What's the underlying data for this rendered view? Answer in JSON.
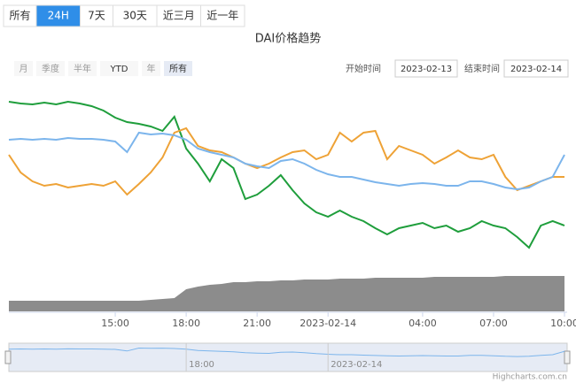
{
  "chart_data": {
    "type": "line",
    "tabs": [
      "所有",
      "24H",
      "7天",
      "30天",
      "近三月",
      "近一年"
    ],
    "title": "DAI价格趋势",
    "zoom_buttons": [
      "月",
      "季度",
      "半年",
      "YTD",
      "年",
      "所有"
    ],
    "start_label": "开始时间",
    "start": "2023-02-13",
    "end_label": "结束时间",
    "end": "2023-02-14",
    "categories": [
      null,
      null,
      null,
      null,
      null,
      null,
      null,
      null,
      null,
      "15:00",
      null,
      null,
      null,
      null,
      null,
      "18:00",
      null,
      null,
      null,
      null,
      null,
      "21:00",
      null,
      null,
      null,
      null,
      null,
      "2023-02-14",
      null,
      null,
      null,
      null,
      null,
      null,
      null,
      "04:00",
      null,
      null,
      null,
      null,
      null,
      "07:00",
      null,
      null,
      null,
      null,
      null,
      "10:00"
    ],
    "ylim": [
      0,
      200
    ],
    "series": [
      {
        "color": "#1f9e3c",
        "values": [
          185,
          183,
          182,
          184,
          182,
          185,
          183,
          180,
          175,
          167,
          162,
          160,
          157,
          152,
          168,
          132,
          115,
          95,
          120,
          110,
          75,
          80,
          90,
          102,
          85,
          70,
          60,
          55,
          62,
          55,
          50,
          42,
          35,
          42,
          45,
          48,
          42,
          45,
          38,
          42,
          50,
          45,
          42,
          32,
          20,
          45,
          50,
          45
        ]
      },
      {
        "color": "#eea236",
        "values": [
          125,
          105,
          95,
          90,
          92,
          88,
          90,
          92,
          90,
          95,
          80,
          92,
          105,
          122,
          150,
          155,
          135,
          130,
          128,
          122,
          115,
          110,
          115,
          122,
          128,
          130,
          120,
          125,
          150,
          140,
          150,
          152,
          120,
          135,
          130,
          125,
          115,
          122,
          130,
          122,
          120,
          125,
          100,
          85,
          90,
          95,
          100,
          100
        ]
      },
      {
        "color": "#7cb5ec",
        "values": [
          142,
          143,
          142,
          143,
          142,
          144,
          143,
          143,
          142,
          140,
          128,
          150,
          148,
          149,
          147,
          142,
          132,
          128,
          125,
          122,
          115,
          112,
          110,
          118,
          120,
          115,
          108,
          103,
          100,
          100,
          97,
          94,
          92,
          90,
          92,
          93,
          92,
          90,
          90,
          95,
          95,
          92,
          88,
          86,
          88,
          95,
          100,
          125
        ]
      }
    ],
    "area": {
      "color": "#8c8c8c",
      "ylim": [
        0,
        50
      ],
      "values": [
        12,
        12,
        12,
        12,
        12,
        12,
        12,
        12,
        12,
        12,
        12,
        12,
        13,
        14,
        15,
        25,
        28,
        30,
        31,
        33,
        33,
        34,
        34,
        35,
        35,
        36,
        36,
        36,
        37,
        37,
        37,
        38,
        38,
        38,
        38,
        38,
        39,
        39,
        39,
        39,
        39,
        39,
        40,
        40,
        40,
        40,
        40,
        40
      ]
    },
    "navigator_labels": [
      {
        "index": 15,
        "label": "18:00"
      },
      {
        "index": 27,
        "label": "2023-02-14"
      }
    ],
    "credits": "Highcharts.com.cn"
  }
}
